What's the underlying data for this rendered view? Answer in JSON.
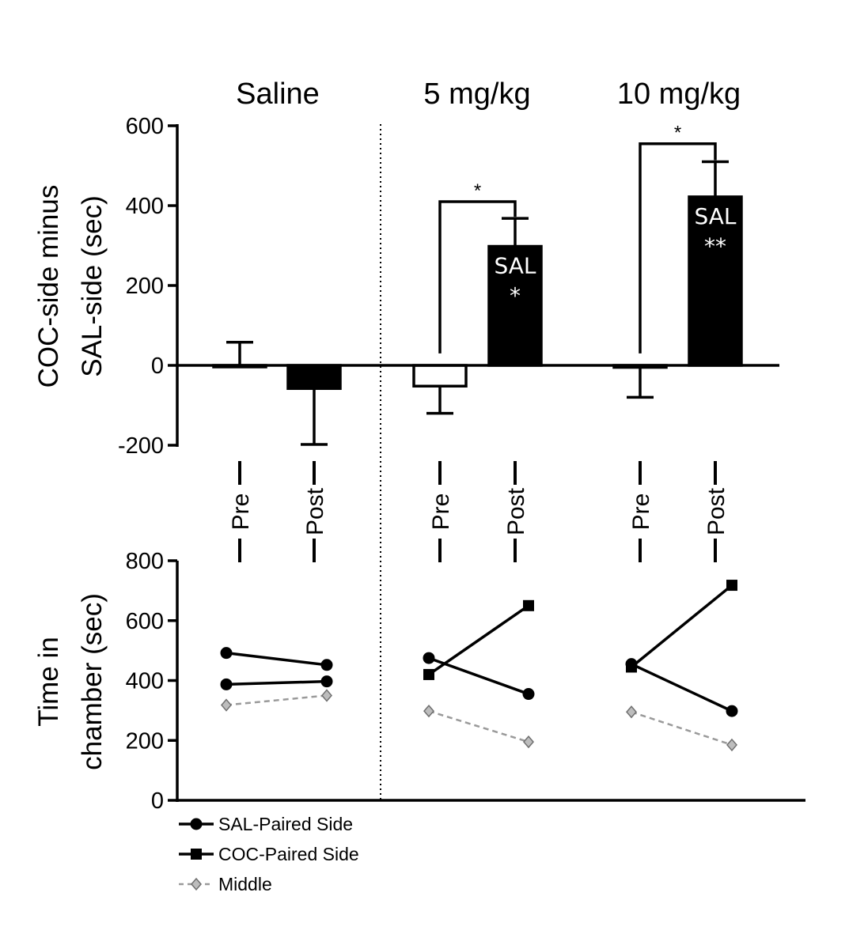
{
  "colors": {
    "ink": "#000000",
    "middle": "#9a9a9a",
    "bar_light": "#ffffff",
    "bar_dark": "#000000",
    "label_on_dark": "#ffffff"
  },
  "groups": [
    "Saline",
    "5 mg/kg",
    "10 mg/kg"
  ],
  "chart_data": [
    {
      "type": "bar",
      "ylabel_lines": [
        "COC-side minus",
        "SAL-side (sec)"
      ],
      "ylim": [
        -200,
        600
      ],
      "yticks": [
        -200,
        0,
        200,
        400,
        600
      ],
      "groups": [
        "Saline",
        "5 mg/kg",
        "10 mg/kg"
      ],
      "categories": [
        "Pre",
        "Post"
      ],
      "bars": [
        {
          "group": "Saline",
          "category": "Pre",
          "value": 0,
          "error": 58,
          "fill": "white"
        },
        {
          "group": "Saline",
          "category": "Post",
          "value": -58,
          "error": 140,
          "fill": "black"
        },
        {
          "group": "5 mg/kg",
          "category": "Pre",
          "value": -52,
          "error": 68,
          "fill": "white"
        },
        {
          "group": "5 mg/kg",
          "category": "Post",
          "value": 298,
          "error": 70,
          "fill": "black"
        },
        {
          "group": "10 mg/kg",
          "category": "Pre",
          "value": -5,
          "error": 75,
          "fill": "white"
        },
        {
          "group": "10 mg/kg",
          "category": "Post",
          "value": 422,
          "error": 88,
          "fill": "black"
        }
      ],
      "annotations": [
        {
          "group": "5 mg/kg",
          "category": "Post",
          "lines": [
            "SAL",
            "*"
          ]
        },
        {
          "group": "10 mg/kg",
          "category": "Post",
          "lines": [
            "SAL",
            "**"
          ]
        }
      ],
      "significance": [
        {
          "group": "5 mg/kg",
          "label": "*",
          "y": 410
        },
        {
          "group": "10 mg/kg",
          "label": "*",
          "y": 555
        }
      ],
      "grid": false,
      "separator_after_group": "Saline"
    },
    {
      "type": "line",
      "ylabel_lines": [
        "Time in",
        "chamber (sec)"
      ],
      "ylim": [
        0,
        800
      ],
      "yticks": [
        0,
        200,
        400,
        600,
        800
      ],
      "groups": [
        "Saline",
        "5 mg/kg",
        "10 mg/kg"
      ],
      "categories": [
        "Pre",
        "Post"
      ],
      "series": [
        {
          "name": "SAL-Paired Side",
          "marker": "circle",
          "style": "solid",
          "values": {
            "Saline": [
              [
                492,
                452
              ],
              [
                387,
                397
              ]
            ],
            "5 mg/kg": [
              [
                475,
                355
              ]
            ],
            "10 mg/kg": [
              [
                455,
                298
              ]
            ]
          }
        },
        {
          "name": "COC-Paired Side",
          "marker": "square",
          "style": "solid",
          "values": {
            "5 mg/kg": [
              [
                420,
                650
              ]
            ],
            "10 mg/kg": [
              [
                445,
                718
              ]
            ]
          }
        },
        {
          "name": "Middle",
          "marker": "diamond",
          "style": "dashed",
          "values": {
            "Saline": [
              [
                318,
                350
              ]
            ],
            "5 mg/kg": [
              [
                298,
                195
              ]
            ],
            "10 mg/kg": [
              [
                295,
                185
              ]
            ]
          }
        }
      ],
      "legend_position": "bottom-left",
      "grid": false
    }
  ]
}
